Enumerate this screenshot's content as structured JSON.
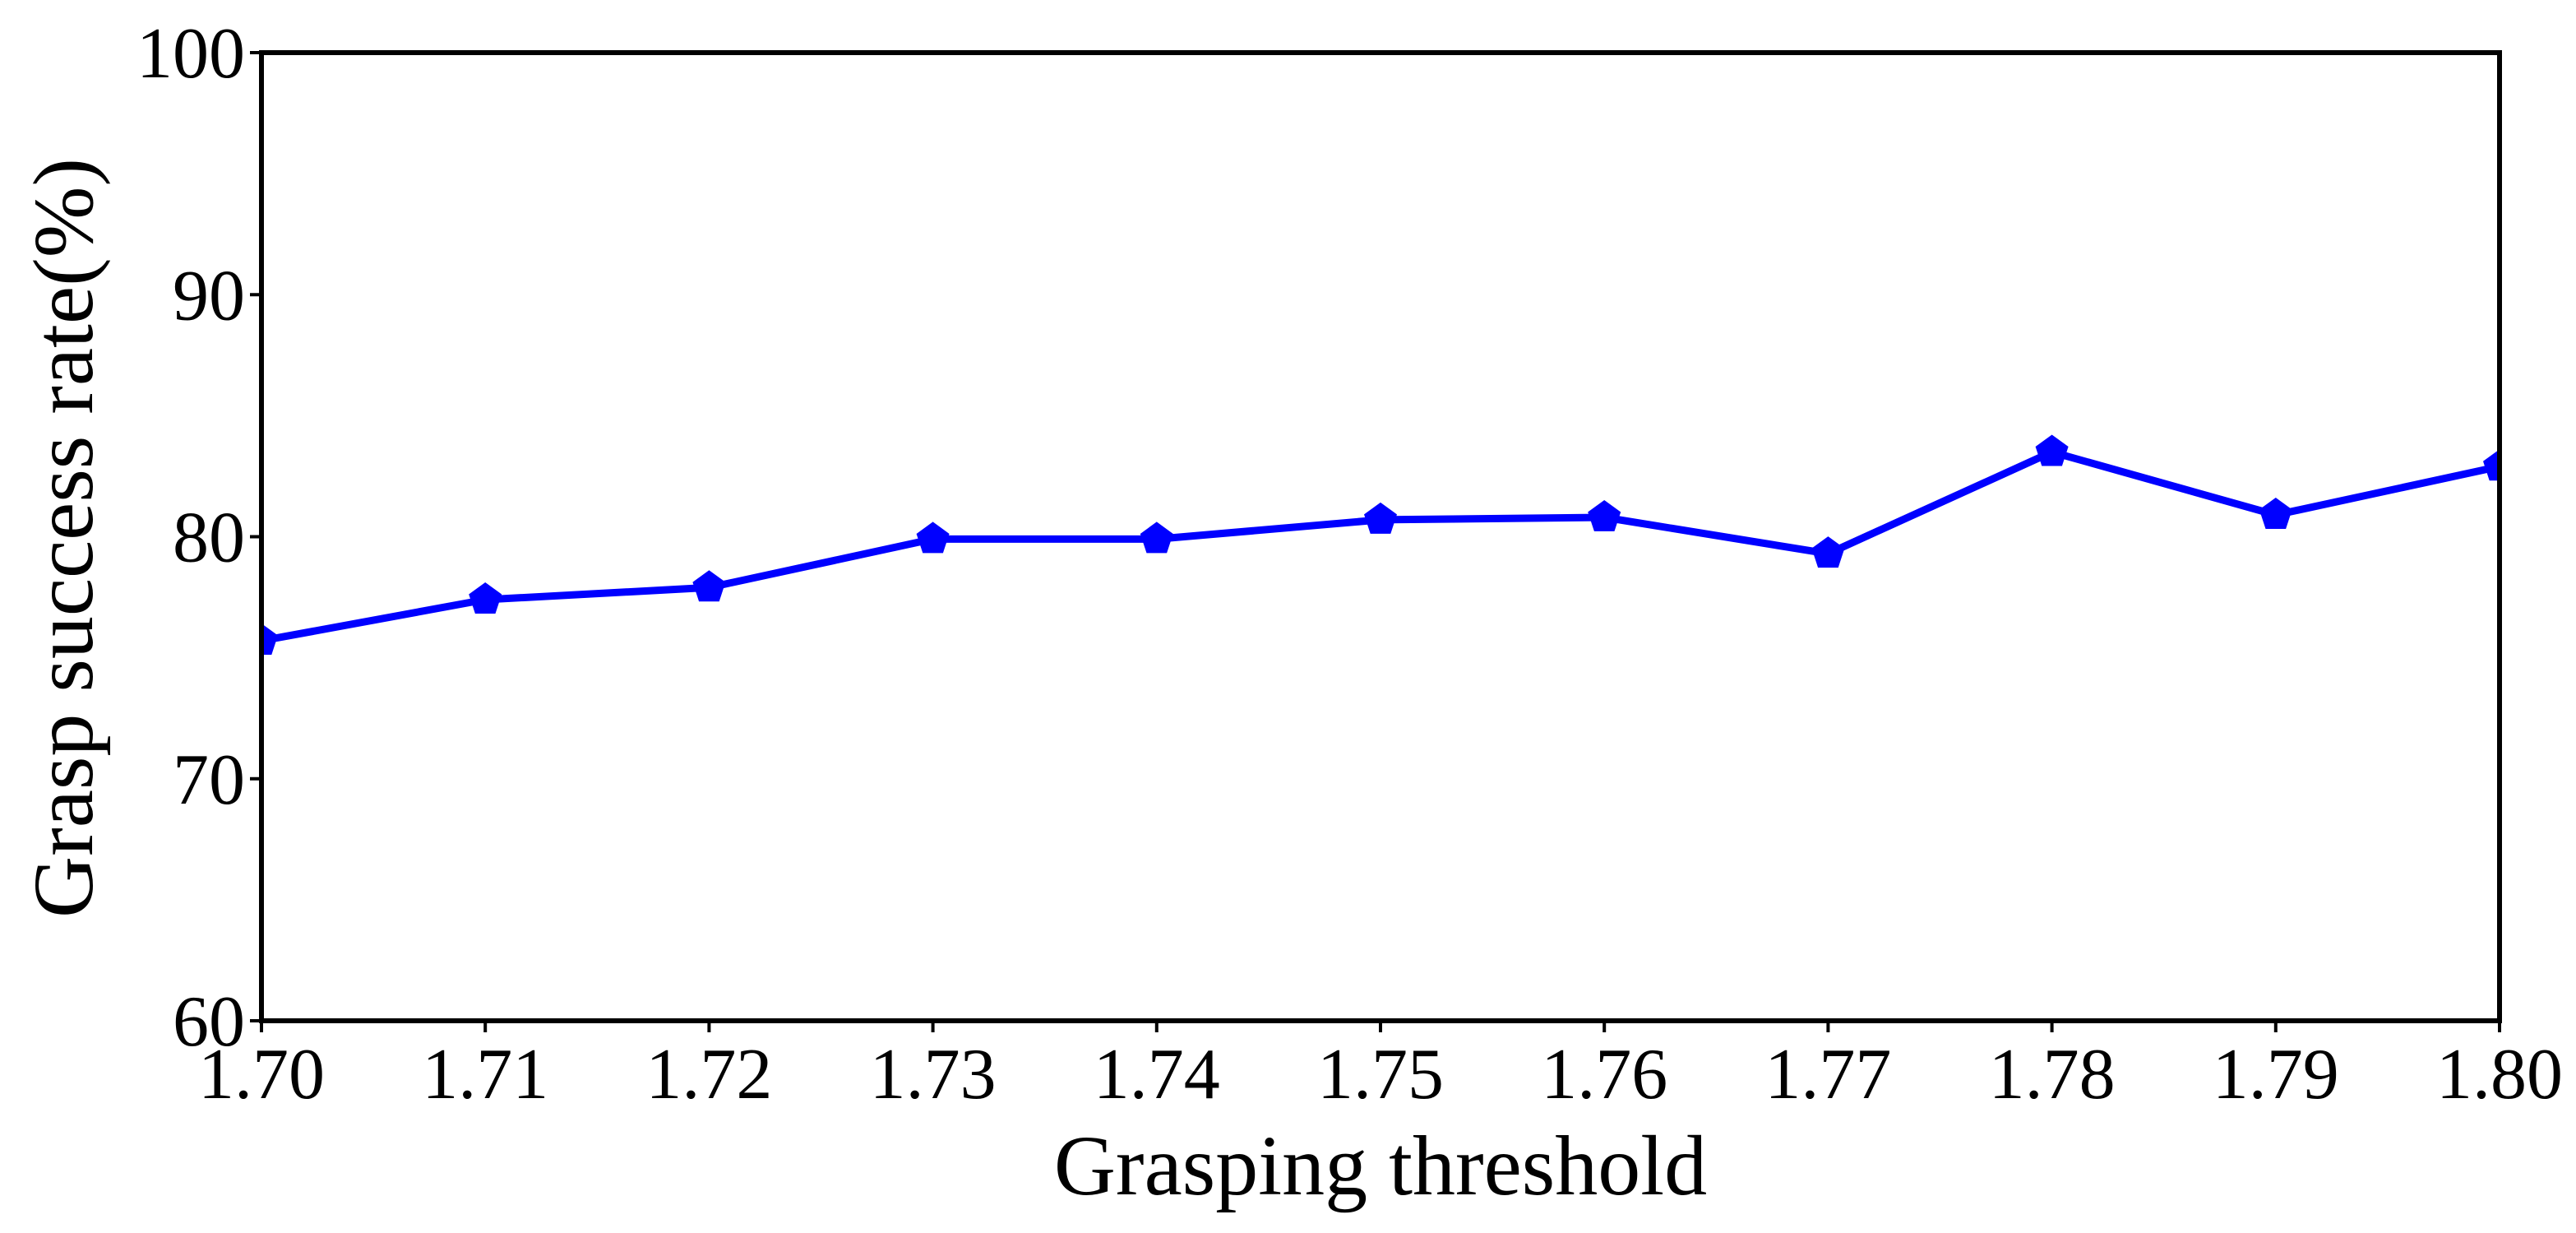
{
  "chart_data": {
    "type": "line",
    "x_label": "Grasping threshold",
    "y_label": "Grasp success rate(%)",
    "x": [
      1.7,
      1.71,
      1.72,
      1.73,
      1.74,
      1.75,
      1.76,
      1.77,
      1.78,
      1.79,
      1.8
    ],
    "series": [
      {
        "color": "#0000ff",
        "values": [
          75.7,
          77.4,
          77.9,
          79.9,
          79.9,
          80.7,
          80.8,
          79.3,
          83.5,
          80.9,
          82.9
        ]
      }
    ],
    "xlim": [
      1.7,
      1.8
    ],
    "xticks": [
      {
        "value": 1.7,
        "label": "1.70"
      },
      1.71,
      1.72,
      1.73,
      1.74,
      1.75,
      1.76,
      1.77,
      1.78,
      1.79,
      {
        "value": 1.8,
        "label": "1.80"
      }
    ],
    "ylim": [
      60,
      100
    ],
    "yticks": [
      60,
      70,
      80,
      90,
      100
    ],
    "grid": false
  }
}
